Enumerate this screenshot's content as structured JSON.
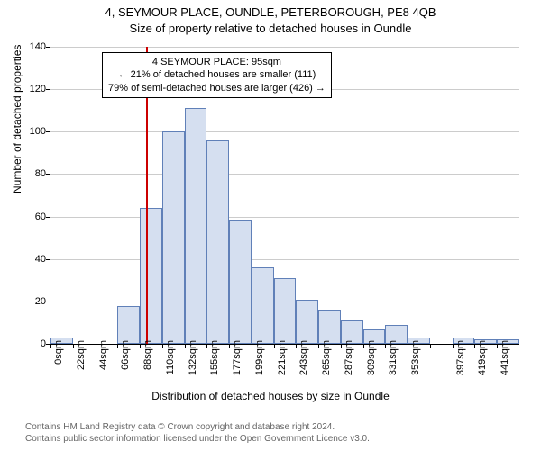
{
  "title": "4, SEYMOUR PLACE, OUNDLE, PETERBOROUGH, PE8 4QB",
  "subtitle": "Size of property relative to detached houses in Oundle",
  "ylabel": "Number of detached properties",
  "xlabel": "Distribution of detached houses by size in Oundle",
  "chart": {
    "type": "histogram",
    "ylim": [
      0,
      140
    ],
    "ytick_step": 20,
    "yticks": [
      0,
      20,
      40,
      60,
      80,
      100,
      120,
      140
    ],
    "xticks": [
      "0sqm",
      "22sqm",
      "44sqm",
      "66sqm",
      "88sqm",
      "110sqm",
      "132sqm",
      "155sqm",
      "177sqm",
      "199sqm",
      "221sqm",
      "243sqm",
      "265sqm",
      "287sqm",
      "309sqm",
      "331sqm",
      "353sqm",
      "",
      "397sqm",
      "419sqm",
      "441sqm"
    ],
    "values": [
      3,
      0,
      0,
      18,
      64,
      100,
      111,
      96,
      58,
      36,
      31,
      21,
      16,
      11,
      7,
      9,
      3,
      0,
      3,
      2,
      2
    ],
    "bar_fill": "#d5dff0",
    "bar_border": "#6080b8",
    "grid_color": "#cccccc",
    "background": "#ffffff",
    "marker_x_index": 4.3,
    "marker_color": "#cc0000"
  },
  "annotation": {
    "line1": "4 SEYMOUR PLACE: 95sqm",
    "line2": "← 21% of detached houses are smaller (111)",
    "line3": "79% of semi-detached houses are larger (426) →"
  },
  "footer": {
    "line1": "Contains HM Land Registry data © Crown copyright and database right 2024.",
    "line2": "Contains public sector information licensed under the Open Government Licence v3.0."
  }
}
